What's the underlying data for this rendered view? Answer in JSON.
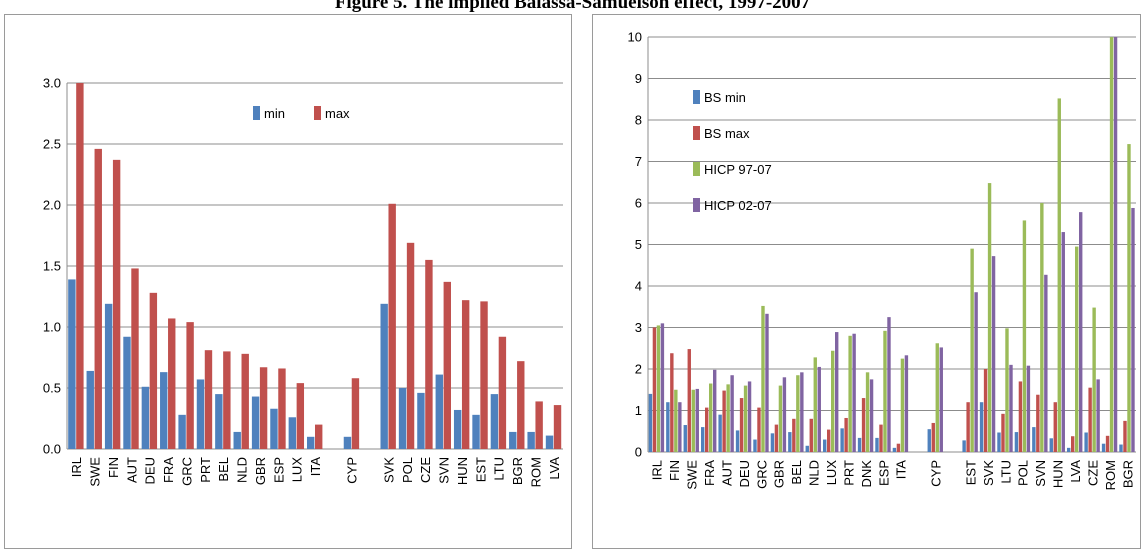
{
  "figure_title": "Figure 5. The implied Balassa-Samuelson effect, 1997-2007",
  "colors": {
    "blue": "#4f81bd",
    "red": "#c0504d",
    "green": "#9bbb59",
    "purple": "#8064a2"
  },
  "chart_data": [
    {
      "type": "bar",
      "title": "",
      "xlabel": "",
      "ylabel": "",
      "ylim": [
        0,
        3.0
      ],
      "yticks": [
        "0.0",
        "0.5",
        "1.0",
        "1.5",
        "2.0",
        "2.5",
        "3.0"
      ],
      "grid": true,
      "legend_placement": "top-center",
      "categories": [
        "IRL",
        "SWE",
        "FIN",
        "AUT",
        "DEU",
        "FRA",
        "GRC",
        "PRT",
        "BEL",
        "NLD",
        "GBR",
        "ESP",
        "LUX",
        "ITA",
        "",
        "CYP",
        "",
        "SVK",
        "POL",
        "CZE",
        "SVN",
        "HUN",
        "EST",
        "LTU",
        "BGR",
        "ROM",
        "LVA"
      ],
      "series": [
        {
          "name": "min",
          "color": "#4f81bd",
          "values": [
            1.39,
            0.64,
            1.19,
            0.92,
            0.51,
            0.63,
            0.28,
            0.57,
            0.45,
            0.14,
            0.43,
            0.33,
            0.26,
            0.1,
            null,
            0.1,
            null,
            1.19,
            0.5,
            0.46,
            0.61,
            0.32,
            0.28,
            0.45,
            0.14,
            0.14,
            0.11
          ]
        },
        {
          "name": "max",
          "color": "#c0504d",
          "values": [
            3.0,
            2.46,
            2.37,
            1.48,
            1.28,
            1.07,
            1.04,
            0.81,
            0.8,
            0.78,
            0.67,
            0.66,
            0.54,
            0.2,
            null,
            0.58,
            null,
            2.01,
            1.69,
            1.55,
            1.37,
            1.22,
            1.21,
            0.92,
            0.72,
            0.39,
            0.36
          ]
        }
      ]
    },
    {
      "type": "bar",
      "title": "",
      "xlabel": "",
      "ylabel": "",
      "ylim": [
        0,
        10
      ],
      "yticks": [
        "0",
        "1",
        "2",
        "3",
        "4",
        "5",
        "6",
        "7",
        "8",
        "9",
        "10"
      ],
      "grid": true,
      "legend_placement": "top-left",
      "categories": [
        "IRL",
        "FIN",
        "SWE",
        "FRA",
        "AUT",
        "DEU",
        "GRC",
        "GBR",
        "BEL",
        "NLD",
        "LUX",
        "PRT",
        "DNK",
        "ESP",
        "ITA",
        "",
        "CYP",
        "",
        "EST",
        "SVK",
        "LTU",
        "POL",
        "SVN",
        "HUN",
        "LVA",
        "CZE",
        "ROM",
        "BGR"
      ],
      "series": [
        {
          "name": "BS min",
          "color": "#4f81bd",
          "values": [
            1.4,
            1.2,
            0.65,
            0.6,
            0.9,
            0.52,
            0.3,
            0.45,
            0.48,
            0.15,
            0.3,
            0.57,
            0.34,
            0.34,
            0.1,
            null,
            0.55,
            null,
            0.28,
            1.2,
            0.47,
            0.48,
            0.6,
            0.33,
            0.1,
            0.47,
            0.2,
            0.18
          ]
        },
        {
          "name": "BS max",
          "color": "#c0504d",
          "values": [
            3.0,
            2.38,
            2.48,
            1.07,
            1.48,
            1.3,
            1.07,
            0.66,
            0.8,
            0.8,
            0.54,
            0.82,
            1.3,
            0.66,
            0.2,
            null,
            0.7,
            null,
            1.2,
            2.0,
            0.92,
            1.7,
            1.38,
            1.2,
            0.38,
            1.55,
            0.39,
            0.75
          ]
        },
        {
          "name": "HICP 97-07",
          "color": "#9bbb59",
          "values": [
            3.05,
            1.5,
            1.5,
            1.65,
            1.63,
            1.6,
            3.52,
            1.6,
            1.85,
            2.28,
            2.44,
            2.8,
            1.92,
            2.92,
            2.25,
            null,
            2.62,
            null,
            4.9,
            6.48,
            2.98,
            5.58,
            6.0,
            8.52,
            4.95,
            3.48,
            10.0,
            7.42
          ]
        },
        {
          "name": "HICP 02-07",
          "color": "#8064a2",
          "values": [
            3.1,
            1.2,
            1.52,
            1.98,
            1.85,
            1.7,
            3.33,
            1.8,
            1.92,
            2.05,
            2.89,
            2.85,
            1.75,
            3.25,
            2.33,
            null,
            2.52,
            null,
            3.85,
            4.72,
            2.1,
            2.08,
            4.27,
            5.3,
            5.78,
            1.75,
            10.0,
            5.88
          ]
        }
      ]
    }
  ]
}
